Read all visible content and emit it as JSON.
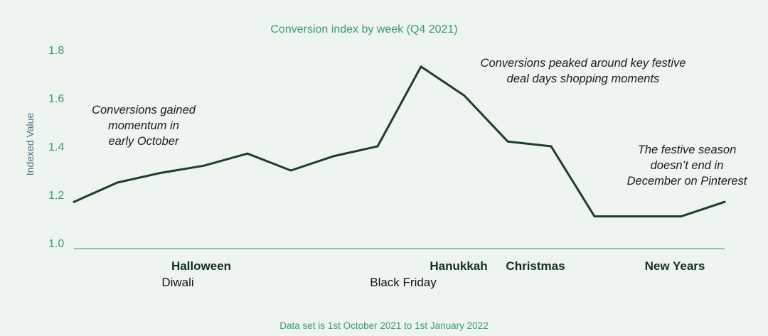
{
  "chart_data": {
    "type": "line",
    "title": "Conversion index by week (Q4 2021)",
    "ylabel": "Indexed Value",
    "xlabel": "",
    "ylim": [
      1.0,
      1.8
    ],
    "yticks": [
      "1.0",
      "1.2",
      "1.4",
      "1.6",
      "1.8"
    ],
    "x": [
      1,
      2,
      3,
      4,
      5,
      6,
      7,
      8,
      9,
      10,
      11,
      12,
      13,
      14,
      15,
      16
    ],
    "values": [
      1.17,
      1.25,
      1.29,
      1.32,
      1.37,
      1.3,
      1.36,
      1.4,
      1.73,
      1.61,
      1.42,
      1.4,
      1.11,
      1.11,
      1.11,
      1.17
    ],
    "line_color": "#1f3d2e",
    "grid": false,
    "events_bold": [
      "Halloween",
      "Hanukkah",
      "Christmas",
      "New Years"
    ],
    "events_plain": [
      "Diwali",
      "Black Friday"
    ],
    "annotations": [
      [
        "Conversions gained",
        "momentum in",
        "early October"
      ],
      [
        "Conversions peaked around key festive",
        "deal days shopping moments"
      ],
      [
        "The festive season",
        "doesn’t end in",
        "December on Pinterest"
      ]
    ],
    "footnote": "Data set is 1st October 2021 to 1st January 2022"
  }
}
